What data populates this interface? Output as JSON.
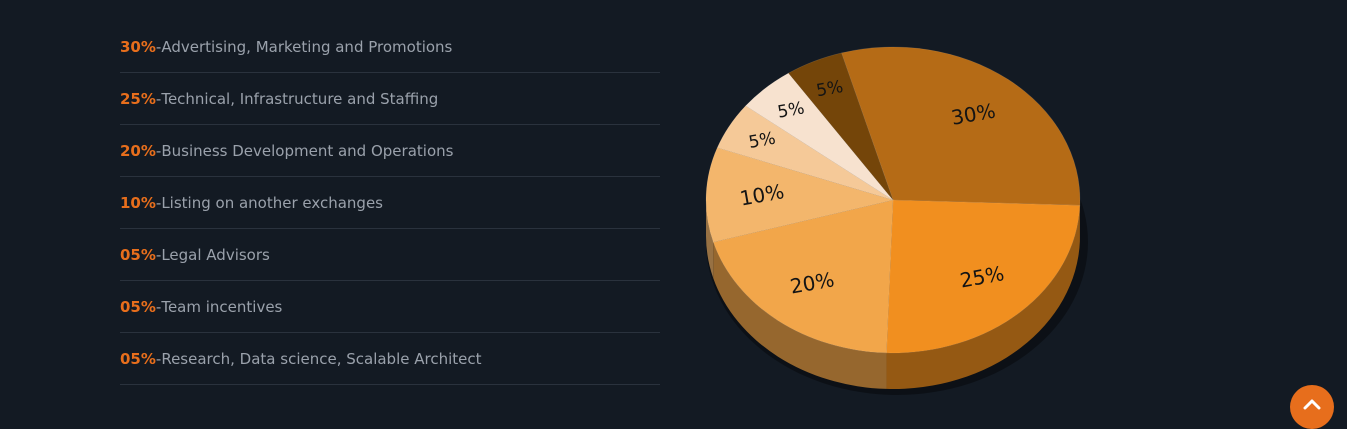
{
  "chart_data": {
    "type": "pie",
    "slices": [
      {
        "value": 30,
        "label": "30%",
        "name": "Advertising, Marketing and Promotions",
        "color": "#b56b16"
      },
      {
        "value": 25,
        "label": "25%",
        "name": "Technical, Infrastructure and Staffing",
        "color": "#f18f1f"
      },
      {
        "value": 20,
        "label": "20%",
        "name": "Business Development and Operations",
        "color": "#f2a64a"
      },
      {
        "value": 10,
        "label": "10%",
        "name": "Listing on another exchanges",
        "color": "#f3b66c"
      },
      {
        "value": 5,
        "label": "5%",
        "name": "Legal Advisors",
        "color": "#f5c998"
      },
      {
        "value": 5,
        "label": "5%",
        "name": "Team incentives",
        "color": "#f7e2cf"
      },
      {
        "value": 5,
        "label": "5%",
        "name": "Research, Data science, Scalable Architect",
        "color": "#744509"
      }
    ]
  },
  "legend": [
    {
      "pct": "30%",
      "sep": "- ",
      "text": "Advertising, Marketing and Promotions"
    },
    {
      "pct": "25%",
      "sep": "- ",
      "text": "Technical, Infrastructure and Staffing"
    },
    {
      "pct": "20%",
      "sep": "- ",
      "text": "Business Development and Operations"
    },
    {
      "pct": "10%",
      "sep": "- ",
      "text": "Listing on another exchanges"
    },
    {
      "pct": "05%",
      "sep": "- ",
      "text": "Legal Advisors"
    },
    {
      "pct": "05%",
      "sep": "- ",
      "text": "Team incentives"
    },
    {
      "pct": "05%",
      "sep": "- ",
      "text": "Research, Data science, Scalable Architect"
    }
  ],
  "scroll_top": {
    "icon": "chevron-up-icon"
  },
  "colors": {
    "accent": "#e76e1c",
    "background": "#131a23"
  }
}
